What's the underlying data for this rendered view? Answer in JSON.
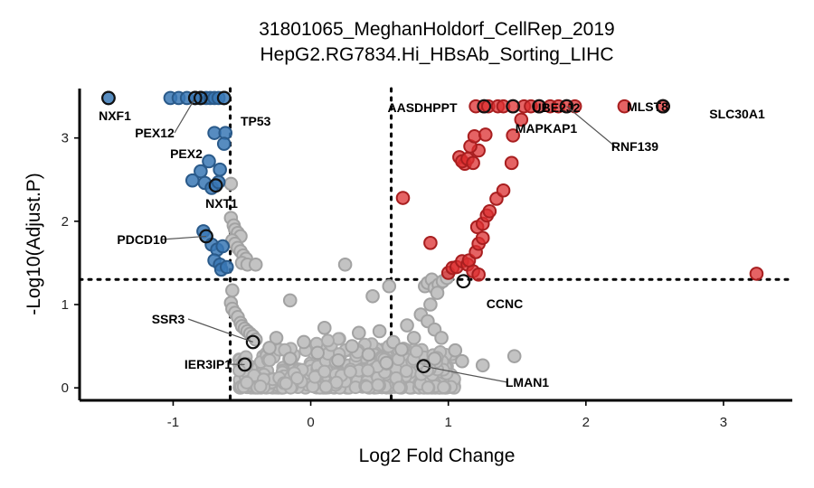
{
  "chart_data": {
    "type": "scatter",
    "title": "31801065_MeghanHoldorf_CellRep_2019",
    "subtitle": "HepG2.RG7834.Hi_HBsAb_Sorting_LIHC",
    "xlabel": "Log2 Fold Change",
    "ylabel": "-Log10(Adjust.P)",
    "xlim": [
      -1.68,
      3.5
    ],
    "ylim": [
      -0.15,
      3.68
    ],
    "x_ticks": [
      -1,
      0,
      1,
      2,
      3
    ],
    "y_ticks": [
      0,
      1,
      2,
      3
    ],
    "x_tick_labels": [
      "-1",
      "0",
      "1",
      "2",
      "3"
    ],
    "y_tick_labels": [
      "0",
      "1",
      "2",
      "3"
    ],
    "thresholds": {
      "x": [
        -0.585,
        0.585
      ],
      "y": 1.301
    },
    "grid": false,
    "colors": {
      "down": "#3a78b5",
      "up": "#dc2f30",
      "ns": "#c3c3c3",
      "highlight_edge": "#111111"
    },
    "series": [
      {
        "group": "down",
        "points": [
          [
            -1.47,
            3.48
          ],
          [
            -1.02,
            3.48
          ],
          [
            -0.96,
            3.48
          ],
          [
            -0.9,
            3.48
          ],
          [
            -0.84,
            3.48
          ],
          [
            -0.8,
            3.48
          ],
          [
            -0.76,
            3.48
          ],
          [
            -0.73,
            3.48
          ],
          [
            -0.7,
            3.48
          ],
          [
            -0.67,
            3.48
          ],
          [
            -0.63,
            3.48
          ],
          [
            -0.7,
            3.06
          ],
          [
            -0.62,
            3.06
          ],
          [
            -0.63,
            2.93
          ],
          [
            -0.74,
            2.72
          ],
          [
            -0.66,
            2.62
          ],
          [
            -0.8,
            2.6
          ],
          [
            -0.86,
            2.49
          ],
          [
            -0.77,
            2.46
          ],
          [
            -0.69,
            2.43
          ],
          [
            -0.72,
            2.4
          ],
          [
            -0.67,
            2.47
          ],
          [
            -0.78,
            1.88
          ],
          [
            -0.76,
            1.82
          ],
          [
            -0.72,
            1.72
          ],
          [
            -0.68,
            1.66
          ],
          [
            -0.64,
            1.7
          ],
          [
            -0.7,
            1.53
          ],
          [
            -0.66,
            1.48
          ],
          [
            -0.65,
            1.42
          ],
          [
            -0.61,
            1.45
          ]
        ]
      },
      {
        "group": "up",
        "points": [
          [
            0.67,
            2.28
          ],
          [
            0.87,
            1.74
          ],
          [
            1.0,
            1.38
          ],
          [
            1.03,
            1.44
          ],
          [
            1.06,
            1.45
          ],
          [
            1.1,
            1.52
          ],
          [
            1.14,
            1.48
          ],
          [
            1.18,
            1.4
          ],
          [
            1.22,
            1.36
          ],
          [
            1.15,
            1.53
          ],
          [
            1.2,
            1.63
          ],
          [
            1.22,
            1.73
          ],
          [
            1.25,
            1.8
          ],
          [
            1.21,
            1.93
          ],
          [
            1.25,
            1.97
          ],
          [
            1.28,
            2.07
          ],
          [
            1.3,
            2.12
          ],
          [
            1.35,
            2.27
          ],
          [
            1.4,
            2.37
          ],
          [
            1.08,
            2.77
          ],
          [
            1.12,
            2.69
          ],
          [
            1.1,
            2.72
          ],
          [
            1.14,
            2.75
          ],
          [
            1.18,
            2.7
          ],
          [
            1.22,
            2.85
          ],
          [
            1.16,
            2.9
          ],
          [
            1.19,
            3.02
          ],
          [
            1.27,
            3.04
          ],
          [
            1.46,
            2.7
          ],
          [
            1.47,
            3.03
          ],
          [
            1.53,
            3.22
          ],
          [
            1.2,
            3.38
          ],
          [
            1.26,
            3.38
          ],
          [
            1.29,
            3.38
          ],
          [
            1.36,
            3.38
          ],
          [
            1.4,
            3.38
          ],
          [
            1.47,
            3.38
          ],
          [
            1.55,
            3.38
          ],
          [
            1.6,
            3.38
          ],
          [
            1.66,
            3.38
          ],
          [
            1.74,
            3.38
          ],
          [
            1.8,
            3.38
          ],
          [
            1.86,
            3.38
          ],
          [
            1.92,
            3.38
          ],
          [
            2.28,
            3.38
          ],
          [
            2.56,
            3.38
          ],
          [
            3.24,
            1.37
          ]
        ]
      },
      {
        "group": "ns",
        "points": [
          [
            -0.57,
            1.17
          ],
          [
            -0.58,
            1.02
          ],
          [
            -0.57,
            0.95
          ],
          [
            -0.55,
            0.9
          ],
          [
            -0.53,
            0.85
          ],
          [
            -0.51,
            0.78
          ],
          [
            -0.5,
            0.74
          ],
          [
            -0.48,
            0.71
          ],
          [
            -0.46,
            0.68
          ],
          [
            -0.44,
            0.65
          ],
          [
            -0.42,
            0.62
          ],
          [
            -0.4,
            0.58
          ],
          [
            -0.58,
            2.45
          ],
          [
            -0.58,
            2.04
          ],
          [
            -0.56,
            1.95
          ],
          [
            -0.55,
            1.9
          ],
          [
            -0.53,
            1.86
          ],
          [
            -0.51,
            1.82
          ],
          [
            -0.57,
            1.77
          ],
          [
            -0.55,
            1.73
          ],
          [
            -0.53,
            1.68
          ],
          [
            -0.51,
            1.64
          ],
          [
            -0.49,
            1.59
          ],
          [
            -0.47,
            1.55
          ],
          [
            -0.5,
            1.5
          ],
          [
            -0.46,
            1.48
          ],
          [
            -0.4,
            1.48
          ],
          [
            0.25,
            1.48
          ],
          [
            -0.15,
            1.05
          ],
          [
            0.45,
            1.1
          ],
          [
            0.57,
            1.22
          ],
          [
            0.83,
            1.22
          ],
          [
            0.85,
            1.26
          ],
          [
            0.88,
            1.3
          ],
          [
            0.9,
            1.2
          ],
          [
            0.93,
            1.24
          ],
          [
            0.96,
            1.28
          ],
          [
            0.99,
            1.32
          ],
          [
            0.92,
            1.14
          ],
          [
            0.87,
            1.0
          ],
          [
            0.8,
            0.88
          ],
          [
            0.85,
            0.8
          ],
          [
            0.9,
            0.7
          ],
          [
            0.95,
            0.6
          ],
          [
            1.05,
            0.45
          ],
          [
            1.1,
            0.32
          ],
          [
            1.25,
            0.27
          ],
          [
            1.48,
            0.38
          ],
          [
            0.1,
            0.72
          ],
          [
            0.35,
            0.66
          ],
          [
            0.5,
            0.68
          ],
          [
            0.7,
            0.75
          ],
          [
            -0.25,
            0.6
          ],
          [
            -0.05,
            0.55
          ],
          [
            0.3,
            0.5
          ],
          [
            0.6,
            0.55
          ],
          [
            0.75,
            0.6
          ],
          [
            -0.3,
            0.48
          ],
          [
            0.05,
            0.42
          ],
          [
            0.42,
            0.4
          ],
          [
            0.66,
            0.46
          ],
          [
            -0.15,
            0.35
          ],
          [
            0.2,
            0.33
          ],
          [
            0.55,
            0.3
          ],
          [
            0.9,
            0.35
          ]
        ]
      }
    ],
    "cloud": {
      "x_range": [
        -0.52,
        1.05
      ],
      "y_range": [
        0,
        0.62
      ]
    },
    "labels": [
      {
        "text": "NXF1",
        "x": -1.47,
        "y": 3.48
      },
      {
        "text": "PEX12",
        "x": -0.84,
        "y": 3.48
      },
      {
        "text": "PEX2",
        "x": -0.8,
        "y": 3.48
      },
      {
        "text": "TP53",
        "x": -0.63,
        "y": 3.48
      },
      {
        "text": "NXT1",
        "x": -0.69,
        "y": 2.43
      },
      {
        "text": "PDCD10",
        "x": -0.76,
        "y": 1.82
      },
      {
        "text": "SSR3",
        "x": -0.42,
        "y": 0.55
      },
      {
        "text": "IER3IP1",
        "x": -0.48,
        "y": 0.28
      },
      {
        "text": "LMAN1",
        "x": 0.82,
        "y": 0.26
      },
      {
        "text": "CCNC",
        "x": 1.11,
        "y": 1.28
      },
      {
        "text": "AASDHPPT",
        "x": 1.26,
        "y": 3.38
      },
      {
        "text": "MAPKAP1",
        "x": 1.47,
        "y": 3.38
      },
      {
        "text": "UBE2J2",
        "x": 1.66,
        "y": 3.38
      },
      {
        "text": "RNF139",
        "x": 1.86,
        "y": 3.38
      },
      {
        "text": "MLST8",
        "x": 2.56,
        "y": 3.38
      },
      {
        "text": "SLC30A1",
        "x": 2.56,
        "y": 3.38
      }
    ]
  }
}
